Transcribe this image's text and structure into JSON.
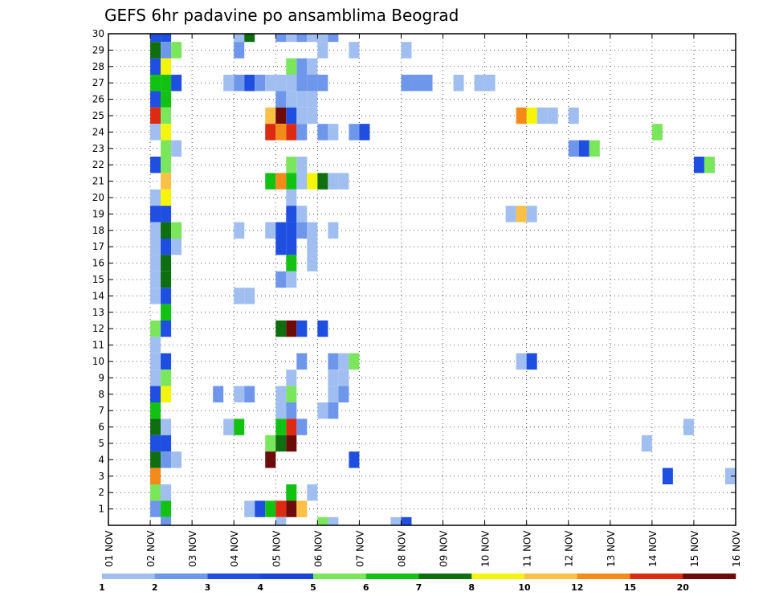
{
  "chart_data": {
    "type": "heatmap",
    "title": "GEFS 6hr padavine po ansamblima Beograd",
    "xlabel": "",
    "ylabel": "",
    "x_ticks": [
      "01 NOV",
      "02 NOV",
      "03 NOV",
      "04 NOV",
      "05 NOV",
      "06 NOV",
      "07 NOV",
      "08 NOV",
      "09 NOV",
      "10 NOV",
      "11 NOV",
      "12 NOV",
      "13 NOV",
      "14 NOV",
      "15 NOV",
      "16 NOV"
    ],
    "y_ticks": [
      1,
      2,
      3,
      4,
      5,
      6,
      7,
      8,
      9,
      10,
      11,
      12,
      13,
      14,
      15,
      16,
      17,
      18,
      19,
      20,
      21,
      22,
      23,
      24,
      25,
      26,
      27,
      28,
      29,
      30
    ],
    "x_range_days": [
      1,
      16
    ],
    "y_range": [
      0,
      30
    ],
    "grid": true,
    "color_scale": {
      "bounds": [
        "1",
        "2",
        "3",
        "4",
        "5",
        "6",
        "7",
        "8",
        "10",
        "12",
        "15",
        "20"
      ],
      "colors": [
        "#a0bff0",
        "#6e97ec",
        "#1f4fe0",
        "#1c44d6",
        "#7ae65c",
        "#12c212",
        "#0f6e0f",
        "#f5f50a",
        "#fbc046",
        "#f48a1a",
        "#dd2a12",
        "#6d0a0a"
      ]
    },
    "points": [
      {
        "x": 2.0,
        "y": 30,
        "v": 3
      },
      {
        "x": 2.25,
        "y": 30,
        "v": 3
      },
      {
        "x": 2.0,
        "y": 29,
        "v": 7
      },
      {
        "x": 2.25,
        "y": 29,
        "v": 2
      },
      {
        "x": 2.5,
        "y": 29,
        "v": 5
      },
      {
        "x": 2.0,
        "y": 28,
        "v": 3
      },
      {
        "x": 2.25,
        "y": 28,
        "v": 8
      },
      {
        "x": 2.0,
        "y": 27,
        "v": 6
      },
      {
        "x": 2.25,
        "y": 27,
        "v": 6
      },
      {
        "x": 2.5,
        "y": 27,
        "v": 3
      },
      {
        "x": 2.0,
        "y": 26,
        "v": 3
      },
      {
        "x": 2.25,
        "y": 26,
        "v": 6
      },
      {
        "x": 2.0,
        "y": 25,
        "v": 15
      },
      {
        "x": 2.25,
        "y": 25,
        "v": 5
      },
      {
        "x": 2.0,
        "y": 24,
        "v": 1
      },
      {
        "x": 2.25,
        "y": 24,
        "v": 8
      },
      {
        "x": 2.25,
        "y": 23,
        "v": 5
      },
      {
        "x": 2.5,
        "y": 23,
        "v": 1
      },
      {
        "x": 2.0,
        "y": 22,
        "v": 3
      },
      {
        "x": 2.25,
        "y": 22,
        "v": 5
      },
      {
        "x": 2.25,
        "y": 21,
        "v": 10
      },
      {
        "x": 2.0,
        "y": 20,
        "v": 1
      },
      {
        "x": 2.25,
        "y": 20,
        "v": 8
      },
      {
        "x": 2.0,
        "y": 19,
        "v": 3
      },
      {
        "x": 2.25,
        "y": 19,
        "v": 3
      },
      {
        "x": 2.0,
        "y": 18,
        "v": 1
      },
      {
        "x": 2.25,
        "y": 18,
        "v": 7
      },
      {
        "x": 2.5,
        "y": 18,
        "v": 5
      },
      {
        "x": 2.0,
        "y": 17,
        "v": 1
      },
      {
        "x": 2.25,
        "y": 17,
        "v": 3
      },
      {
        "x": 2.5,
        "y": 17,
        "v": 1
      },
      {
        "x": 2.0,
        "y": 16,
        "v": 1
      },
      {
        "x": 2.25,
        "y": 16,
        "v": 7
      },
      {
        "x": 2.0,
        "y": 15,
        "v": 1
      },
      {
        "x": 2.25,
        "y": 15,
        "v": 7
      },
      {
        "x": 2.0,
        "y": 14,
        "v": 1
      },
      {
        "x": 2.25,
        "y": 14,
        "v": 3
      },
      {
        "x": 2.25,
        "y": 13,
        "v": 6
      },
      {
        "x": 2.0,
        "y": 12,
        "v": 5
      },
      {
        "x": 2.25,
        "y": 12,
        "v": 3
      },
      {
        "x": 2.0,
        "y": 11,
        "v": 1
      },
      {
        "x": 2.0,
        "y": 10,
        "v": 1
      },
      {
        "x": 2.25,
        "y": 10,
        "v": 3
      },
      {
        "x": 2.0,
        "y": 9,
        "v": 1
      },
      {
        "x": 2.25,
        "y": 9,
        "v": 5
      },
      {
        "x": 2.0,
        "y": 8,
        "v": 3
      },
      {
        "x": 2.25,
        "y": 8,
        "v": 8
      },
      {
        "x": 2.0,
        "y": 7,
        "v": 6
      },
      {
        "x": 2.0,
        "y": 6,
        "v": 7
      },
      {
        "x": 2.25,
        "y": 6,
        "v": 1
      },
      {
        "x": 2.0,
        "y": 5,
        "v": 3
      },
      {
        "x": 2.25,
        "y": 5,
        "v": 3
      },
      {
        "x": 2.0,
        "y": 4,
        "v": 7
      },
      {
        "x": 2.25,
        "y": 4,
        "v": 2
      },
      {
        "x": 2.5,
        "y": 4,
        "v": 1
      },
      {
        "x": 2.0,
        "y": 3,
        "v": 12
      },
      {
        "x": 2.0,
        "y": 2,
        "v": 5
      },
      {
        "x": 2.25,
        "y": 2,
        "v": 1
      },
      {
        "x": 2.0,
        "y": 1,
        "v": 2
      },
      {
        "x": 2.25,
        "y": 1,
        "v": 6
      },
      {
        "x": 2.25,
        "y": 0,
        "v": 2
      },
      {
        "x": 4.0,
        "y": 30,
        "v": 1
      },
      {
        "x": 4.25,
        "y": 30,
        "v": 7
      },
      {
        "x": 5.0,
        "y": 30,
        "v": 2
      },
      {
        "x": 5.25,
        "y": 30,
        "v": 1
      },
      {
        "x": 5.5,
        "y": 30,
        "v": 2
      },
      {
        "x": 5.75,
        "y": 30,
        "v": 1
      },
      {
        "x": 6.0,
        "y": 30,
        "v": 1
      },
      {
        "x": 6.25,
        "y": 30,
        "v": 2
      },
      {
        "x": 4.0,
        "y": 29,
        "v": 2
      },
      {
        "x": 6.0,
        "y": 29,
        "v": 1
      },
      {
        "x": 6.75,
        "y": 29,
        "v": 1
      },
      {
        "x": 8.0,
        "y": 29,
        "v": 1
      },
      {
        "x": 5.25,
        "y": 28,
        "v": 5
      },
      {
        "x": 5.5,
        "y": 28,
        "v": 2
      },
      {
        "x": 5.75,
        "y": 28,
        "v": 1
      },
      {
        "x": 3.75,
        "y": 27,
        "v": 1
      },
      {
        "x": 4.0,
        "y": 27,
        "v": 2
      },
      {
        "x": 4.25,
        "y": 27,
        "v": 3
      },
      {
        "x": 4.5,
        "y": 27,
        "v": 2
      },
      {
        "x": 4.75,
        "y": 27,
        "v": 1
      },
      {
        "x": 5.0,
        "y": 27,
        "v": 1
      },
      {
        "x": 5.25,
        "y": 27,
        "v": 1
      },
      {
        "x": 5.5,
        "y": 27,
        "v": 2
      },
      {
        "x": 5.75,
        "y": 27,
        "v": 2
      },
      {
        "x": 6.0,
        "y": 27,
        "v": 2
      },
      {
        "x": 8.0,
        "y": 27,
        "v": 2
      },
      {
        "x": 8.25,
        "y": 27,
        "v": 2
      },
      {
        "x": 8.5,
        "y": 27,
        "v": 2
      },
      {
        "x": 9.25,
        "y": 27,
        "v": 1
      },
      {
        "x": 9.75,
        "y": 27,
        "v": 1
      },
      {
        "x": 10.0,
        "y": 27,
        "v": 1
      },
      {
        "x": 5.0,
        "y": 26,
        "v": 2
      },
      {
        "x": 5.25,
        "y": 26,
        "v": 1
      },
      {
        "x": 5.5,
        "y": 26,
        "v": 1
      },
      {
        "x": 5.75,
        "y": 26,
        "v": 1
      },
      {
        "x": 4.75,
        "y": 25,
        "v": 10
      },
      {
        "x": 5.0,
        "y": 25,
        "v": 20
      },
      {
        "x": 5.25,
        "y": 25,
        "v": 3
      },
      {
        "x": 5.5,
        "y": 25,
        "v": 1
      },
      {
        "x": 5.75,
        "y": 25,
        "v": 1
      },
      {
        "x": 10.75,
        "y": 25,
        "v": 12
      },
      {
        "x": 11.0,
        "y": 25,
        "v": 8
      },
      {
        "x": 11.25,
        "y": 25,
        "v": 1
      },
      {
        "x": 11.5,
        "y": 25,
        "v": 1
      },
      {
        "x": 12.0,
        "y": 25,
        "v": 1
      },
      {
        "x": 4.75,
        "y": 24,
        "v": 15
      },
      {
        "x": 5.0,
        "y": 24,
        "v": 12
      },
      {
        "x": 5.25,
        "y": 24,
        "v": 15
      },
      {
        "x": 5.5,
        "y": 24,
        "v": 2
      },
      {
        "x": 6.0,
        "y": 24,
        "v": 2
      },
      {
        "x": 6.25,
        "y": 24,
        "v": 1
      },
      {
        "x": 6.75,
        "y": 24,
        "v": 2
      },
      {
        "x": 7.0,
        "y": 24,
        "v": 3
      },
      {
        "x": 14.0,
        "y": 24,
        "v": 5
      },
      {
        "x": 12.0,
        "y": 23,
        "v": 2
      },
      {
        "x": 12.25,
        "y": 23,
        "v": 3
      },
      {
        "x": 12.5,
        "y": 23,
        "v": 5
      },
      {
        "x": 5.25,
        "y": 22,
        "v": 5
      },
      {
        "x": 5.5,
        "y": 22,
        "v": 1
      },
      {
        "x": 15.0,
        "y": 22,
        "v": 3
      },
      {
        "x": 15.25,
        "y": 22,
        "v": 5
      },
      {
        "x": 4.75,
        "y": 21,
        "v": 6
      },
      {
        "x": 5.0,
        "y": 21,
        "v": 12
      },
      {
        "x": 5.25,
        "y": 21,
        "v": 6
      },
      {
        "x": 5.5,
        "y": 21,
        "v": 1
      },
      {
        "x": 5.75,
        "y": 21,
        "v": 8
      },
      {
        "x": 6.0,
        "y": 21,
        "v": 7
      },
      {
        "x": 6.25,
        "y": 21,
        "v": 1
      },
      {
        "x": 6.5,
        "y": 21,
        "v": 1
      },
      {
        "x": 5.25,
        "y": 20,
        "v": 1
      },
      {
        "x": 5.25,
        "y": 19,
        "v": 3
      },
      {
        "x": 5.5,
        "y": 19,
        "v": 1
      },
      {
        "x": 10.5,
        "y": 19,
        "v": 1
      },
      {
        "x": 10.75,
        "y": 19,
        "v": 10
      },
      {
        "x": 11.0,
        "y": 19,
        "v": 1
      },
      {
        "x": 4.0,
        "y": 18,
        "v": 1
      },
      {
        "x": 4.75,
        "y": 18,
        "v": 1
      },
      {
        "x": 5.0,
        "y": 18,
        "v": 3
      },
      {
        "x": 5.25,
        "y": 18,
        "v": 3
      },
      {
        "x": 5.5,
        "y": 18,
        "v": 2
      },
      {
        "x": 5.75,
        "y": 18,
        "v": 1
      },
      {
        "x": 6.25,
        "y": 18,
        "v": 1
      },
      {
        "x": 5.0,
        "y": 17,
        "v": 3
      },
      {
        "x": 5.25,
        "y": 17,
        "v": 3
      },
      {
        "x": 5.75,
        "y": 17,
        "v": 1
      },
      {
        "x": 5.25,
        "y": 16,
        "v": 6
      },
      {
        "x": 5.75,
        "y": 16,
        "v": 1
      },
      {
        "x": 5.0,
        "y": 15,
        "v": 2
      },
      {
        "x": 5.25,
        "y": 15,
        "v": 1
      },
      {
        "x": 4.0,
        "y": 14,
        "v": 1
      },
      {
        "x": 4.25,
        "y": 14,
        "v": 1
      },
      {
        "x": 5.0,
        "y": 12,
        "v": 7
      },
      {
        "x": 5.25,
        "y": 12,
        "v": 20
      },
      {
        "x": 5.5,
        "y": 12,
        "v": 3
      },
      {
        "x": 6.0,
        "y": 12,
        "v": 3
      },
      {
        "x": 5.5,
        "y": 10,
        "v": 2
      },
      {
        "x": 6.25,
        "y": 10,
        "v": 2
      },
      {
        "x": 6.5,
        "y": 10,
        "v": 1
      },
      {
        "x": 6.75,
        "y": 10,
        "v": 5
      },
      {
        "x": 10.75,
        "y": 10,
        "v": 1
      },
      {
        "x": 11.0,
        "y": 10,
        "v": 3
      },
      {
        "x": 5.25,
        "y": 9,
        "v": 1
      },
      {
        "x": 6.25,
        "y": 9,
        "v": 1
      },
      {
        "x": 6.5,
        "y": 9,
        "v": 1
      },
      {
        "x": 3.5,
        "y": 8,
        "v": 2
      },
      {
        "x": 4.0,
        "y": 8,
        "v": 1
      },
      {
        "x": 4.25,
        "y": 8,
        "v": 2
      },
      {
        "x": 5.0,
        "y": 8,
        "v": 1
      },
      {
        "x": 5.25,
        "y": 8,
        "v": 5
      },
      {
        "x": 6.25,
        "y": 8,
        "v": 1
      },
      {
        "x": 6.5,
        "y": 8,
        "v": 2
      },
      {
        "x": 5.0,
        "y": 7,
        "v": 1
      },
      {
        "x": 5.25,
        "y": 7,
        "v": 2
      },
      {
        "x": 6.0,
        "y": 7,
        "v": 1
      },
      {
        "x": 6.25,
        "y": 7,
        "v": 2
      },
      {
        "x": 3.75,
        "y": 6,
        "v": 1
      },
      {
        "x": 4.0,
        "y": 6,
        "v": 6
      },
      {
        "x": 5.0,
        "y": 6,
        "v": 6
      },
      {
        "x": 5.25,
        "y": 6,
        "v": 15
      },
      {
        "x": 5.5,
        "y": 6,
        "v": 2
      },
      {
        "x": 14.75,
        "y": 6,
        "v": 1
      },
      {
        "x": 4.75,
        "y": 5,
        "v": 5
      },
      {
        "x": 5.0,
        "y": 5,
        "v": 7
      },
      {
        "x": 5.25,
        "y": 5,
        "v": 20
      },
      {
        "x": 13.75,
        "y": 5,
        "v": 1
      },
      {
        "x": 4.75,
        "y": 4,
        "v": 20
      },
      {
        "x": 6.75,
        "y": 4,
        "v": 3
      },
      {
        "x": 14.25,
        "y": 3,
        "v": 3
      },
      {
        "x": 15.75,
        "y": 3,
        "v": 1
      },
      {
        "x": 5.25,
        "y": 2,
        "v": 6
      },
      {
        "x": 5.75,
        "y": 2,
        "v": 1
      },
      {
        "x": 4.25,
        "y": 1,
        "v": 1
      },
      {
        "x": 4.5,
        "y": 1,
        "v": 3
      },
      {
        "x": 4.75,
        "y": 1,
        "v": 6
      },
      {
        "x": 5.0,
        "y": 1,
        "v": 15
      },
      {
        "x": 5.25,
        "y": 1,
        "v": 20
      },
      {
        "x": 5.5,
        "y": 1,
        "v": 10
      },
      {
        "x": 5.0,
        "y": 0,
        "v": 1
      },
      {
        "x": 6.0,
        "y": 0,
        "v": 5
      },
      {
        "x": 6.25,
        "y": 0,
        "v": 1
      },
      {
        "x": 7.75,
        "y": 0,
        "v": 1
      },
      {
        "x": 8.0,
        "y": 0,
        "v": 3
      }
    ]
  }
}
